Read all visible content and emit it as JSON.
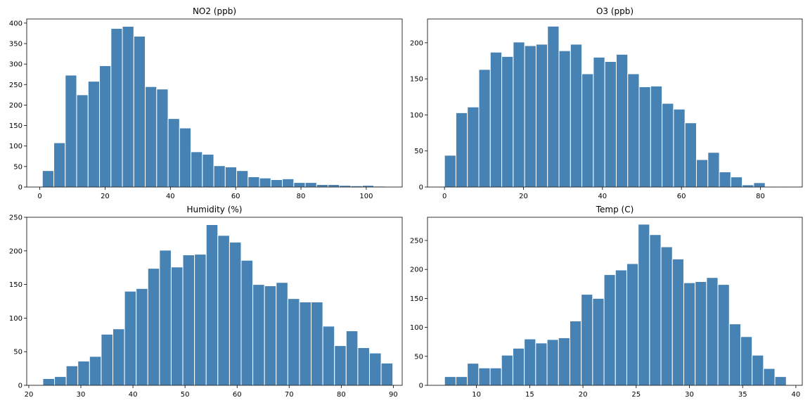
{
  "chart_data": [
    {
      "type": "bar",
      "title": "NO2 (ppb)",
      "xlabel": "",
      "ylabel": "",
      "xlim": [
        -4,
        111
      ],
      "ylim": [
        0,
        410
      ],
      "xticks": [
        0,
        20,
        40,
        60,
        80,
        100
      ],
      "yticks": [
        0,
        50,
        100,
        150,
        200,
        250,
        300,
        350,
        400
      ],
      "grid": false,
      "bin_start": 0.8,
      "bin_width": 3.5,
      "values": [
        40,
        108,
        273,
        225,
        258,
        296,
        387,
        392,
        368,
        245,
        239,
        167,
        144,
        86,
        80,
        52,
        49,
        40,
        25,
        22,
        18,
        20,
        11,
        11,
        6,
        6,
        4,
        3,
        4,
        2
      ]
    },
    {
      "type": "bar",
      "title": "O3 (ppb)",
      "xlabel": "",
      "ylabel": "",
      "xlim": [
        -4.3,
        90.6
      ],
      "ylim": [
        0,
        233
      ],
      "xticks": [
        0,
        20,
        40,
        60,
        80
      ],
      "yticks": [
        0,
        50,
        100,
        150,
        200
      ],
      "grid": false,
      "bin_start": 0,
      "bin_width": 2.9,
      "values": [
        44,
        103,
        111,
        163,
        187,
        181,
        201,
        196,
        198,
        223,
        189,
        198,
        157,
        180,
        174,
        184,
        157,
        139,
        140,
        116,
        108,
        89,
        38,
        48,
        21,
        14,
        3,
        6,
        1,
        1
      ]
    },
    {
      "type": "bar",
      "title": "Humidity (%)",
      "xlabel": "",
      "ylabel": "",
      "xlim": [
        19.6,
        91.7
      ],
      "ylim": [
        0,
        250
      ],
      "xticks": [
        20,
        30,
        40,
        50,
        60,
        70,
        80,
        90
      ],
      "yticks": [
        0,
        50,
        100,
        150,
        200,
        250
      ],
      "grid": false,
      "bin_start": 22.7,
      "bin_width": 2.24,
      "values": [
        10,
        13,
        29,
        36,
        43,
        76,
        84,
        140,
        144,
        174,
        201,
        176,
        194,
        195,
        239,
        223,
        213,
        186,
        150,
        148,
        153,
        129,
        124,
        124,
        88,
        59,
        81,
        56,
        48,
        33
      ]
    },
    {
      "type": "bar",
      "title": "Temp (C)",
      "xlabel": "",
      "ylabel": "",
      "xlim": [
        5.4,
        40.6
      ],
      "ylim": [
        0,
        290
      ],
      "xticks": [
        10,
        15,
        20,
        25,
        30,
        35,
        40
      ],
      "yticks": [
        0,
        50,
        100,
        150,
        200,
        250
      ],
      "grid": false,
      "bin_start": 7,
      "bin_width": 1.07,
      "values": [
        15,
        15,
        38,
        30,
        30,
        52,
        64,
        80,
        73,
        79,
        82,
        111,
        157,
        150,
        191,
        199,
        210,
        278,
        260,
        239,
        218,
        177,
        179,
        186,
        174,
        106,
        84,
        52,
        29,
        15
      ]
    }
  ]
}
